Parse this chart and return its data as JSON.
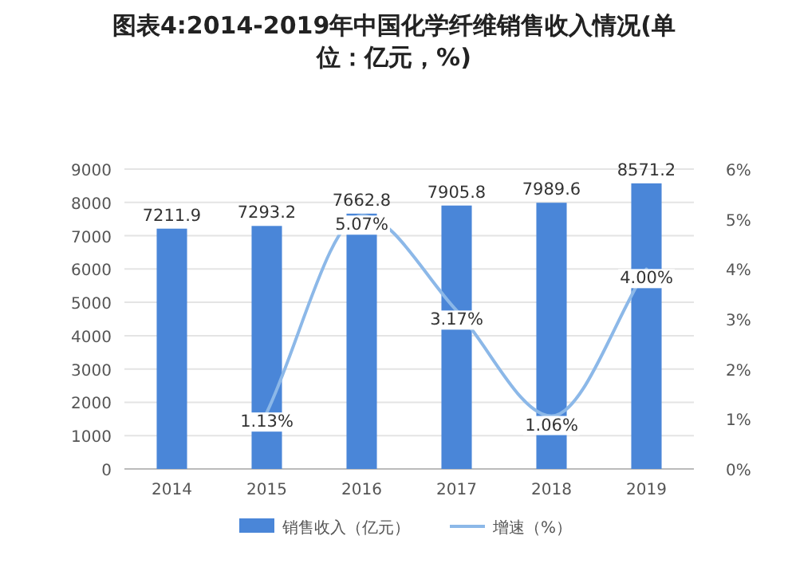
{
  "chart_data": {
    "type": "bar",
    "title": "图表4:2014-2019年中国化学纤维销售收入情况(单位：亿元，%)",
    "categories": [
      "2014",
      "2015",
      "2016",
      "2017",
      "2018",
      "2019"
    ],
    "series": [
      {
        "name": "销售收入（亿元）",
        "color": "#4a86d8",
        "values": [
          7211.9,
          7293.2,
          7662.8,
          7905.8,
          7989.6,
          8571.2
        ],
        "value_labels": [
          "7211.9",
          "7293.2",
          "7662.8",
          "7905.8",
          "7989.6",
          "8571.2"
        ]
      },
      {
        "name": "增速（%）",
        "type": "line",
        "axis": "y2",
        "color": "#8cb8e8",
        "values": [
          null,
          1.13,
          5.07,
          3.17,
          1.06,
          4.0
        ],
        "value_labels": [
          null,
          "1.13%",
          "5.07%",
          "3.17%",
          "1.06%",
          "4.00%"
        ]
      }
    ],
    "ylim": [
      0,
      9000
    ],
    "yticks": [
      0,
      1000,
      2000,
      3000,
      4000,
      5000,
      6000,
      7000,
      8000,
      9000
    ],
    "y2lim": [
      0,
      6
    ],
    "y2ticks": [
      {
        "value": 0,
        "label": "0%"
      },
      {
        "value": 1,
        "label": "1%"
      },
      {
        "value": 2,
        "label": "2%"
      },
      {
        "value": 3,
        "label": "3%"
      },
      {
        "value": 4,
        "label": "4%"
      },
      {
        "value": 5,
        "label": "5%"
      },
      {
        "value": 6,
        "label": "6%"
      }
    ],
    "grid": "y",
    "legend": "bottom",
    "marker": "none",
    "line_style": "solid"
  }
}
